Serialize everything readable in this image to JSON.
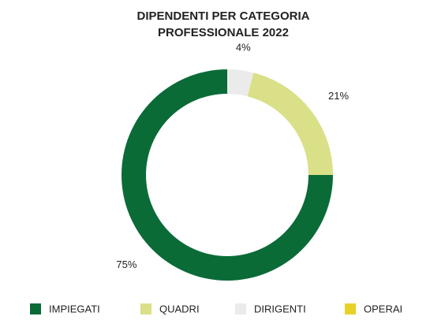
{
  "chart_data": {
    "type": "pie",
    "title": [
      "DIPENDENTI PER CATEGORIA",
      "PROFESSIONALE 2022"
    ],
    "categories": [
      "IMPIEGATI",
      "QUADRI",
      "DIRIGENTI",
      "OPERAI"
    ],
    "values": [
      75,
      21,
      4,
      0
    ],
    "value_labels": [
      "75%",
      "21%",
      "4%",
      null
    ],
    "colors": [
      "#0a6b37",
      "#d9e088",
      "#ebebeb",
      "#e9d12a"
    ],
    "donut": true,
    "legend": "bottom"
  }
}
